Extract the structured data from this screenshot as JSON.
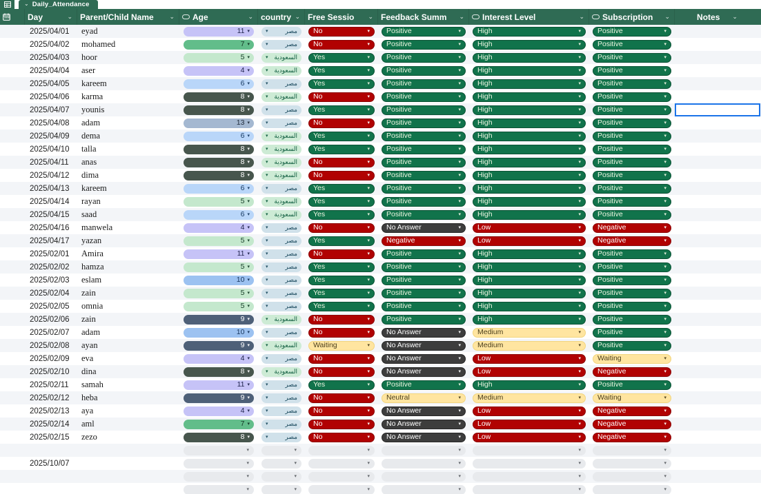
{
  "tab_bar": {
    "sheet_tab": "Daily_Attendance"
  },
  "header": {
    "columns": [
      {
        "key": "gutter",
        "label": "",
        "icon": "calendar-icon"
      },
      {
        "key": "day",
        "label": "Day"
      },
      {
        "key": "name",
        "label": "Parent/Child Name"
      },
      {
        "key": "age",
        "label": "Age",
        "type_icon": "dropdown-chip-icon"
      },
      {
        "key": "country",
        "label": "country"
      },
      {
        "key": "free",
        "label": "Free Sessio"
      },
      {
        "key": "feedback",
        "label": "Feedback Summ"
      },
      {
        "key": "interest",
        "label": "Interest Level",
        "type_icon": "dropdown-chip-icon"
      },
      {
        "key": "subscription",
        "label": "Subscription",
        "type_icon": "dropdown-chip-icon"
      },
      {
        "key": "notes",
        "label": "Notes"
      }
    ]
  },
  "rows": [
    {
      "day": "2025/04/01",
      "name": "eyad",
      "age": "11",
      "country": "مصر",
      "free": "No",
      "feedback": "Positive",
      "interest": "High",
      "subscription": "Positive",
      "notes": ""
    },
    {
      "day": "2025/04/02",
      "name": "mohamed",
      "age": "7",
      "country": "مصر",
      "free": "No",
      "feedback": "Positive",
      "interest": "High",
      "subscription": "Positive",
      "notes": ""
    },
    {
      "day": "2025/04/03",
      "name": "hoor",
      "age": "5",
      "country": "السعودية",
      "free": "Yes",
      "feedback": "Positive",
      "interest": "High",
      "subscription": "Positive",
      "notes": ""
    },
    {
      "day": "2025/04/04",
      "name": "aser",
      "age": "4",
      "country": "السعودية",
      "free": "Yes",
      "feedback": "Positive",
      "interest": "High",
      "subscription": "Positive",
      "notes": ""
    },
    {
      "day": "2025/04/05",
      "name": "kareem",
      "age": "6",
      "country": "مصر",
      "free": "Yes",
      "feedback": "Positive",
      "interest": "High",
      "subscription": "Positive",
      "notes": ""
    },
    {
      "day": "2025/04/06",
      "name": "karma",
      "age": "8",
      "country": "السعودية",
      "free": "No",
      "feedback": "Positive",
      "interest": "High",
      "subscription": "Positive",
      "notes": ""
    },
    {
      "day": "2025/04/07",
      "name": "younis",
      "age": "8",
      "country": "مصر",
      "free": "Yes",
      "feedback": "Positive",
      "interest": "High",
      "subscription": "Positive",
      "notes": ""
    },
    {
      "day": "2025/04/08",
      "name": "adam",
      "age": "13",
      "country": "مصر",
      "free": "No",
      "feedback": "Positive",
      "interest": "High",
      "subscription": "Positive",
      "notes": ""
    },
    {
      "day": "2025/04/09",
      "name": "dema",
      "age": "6",
      "country": "السعودية",
      "free": "Yes",
      "feedback": "Positive",
      "interest": "High",
      "subscription": "Positive",
      "notes": ""
    },
    {
      "day": "2025/04/10",
      "name": "talla",
      "age": "8",
      "country": "السعودية",
      "free": "Yes",
      "feedback": "Positive",
      "interest": "High",
      "subscription": "Positive",
      "notes": ""
    },
    {
      "day": "2025/04/11",
      "name": "anas",
      "age": "8",
      "country": "السعودية",
      "free": "No",
      "feedback": "Positive",
      "interest": "High",
      "subscription": "Positive",
      "notes": ""
    },
    {
      "day": "2025/04/12",
      "name": "dima",
      "age": "8",
      "country": "السعودية",
      "free": "No",
      "feedback": "Positive",
      "interest": "High",
      "subscription": "Positive",
      "notes": ""
    },
    {
      "day": "2025/04/13",
      "name": "kareem",
      "age": "6",
      "country": "مصر",
      "free": "Yes",
      "feedback": "Positive",
      "interest": "High",
      "subscription": "Positive",
      "notes": ""
    },
    {
      "day": "2025/04/14",
      "name": "rayan",
      "age": "5",
      "country": "السعودية",
      "free": "Yes",
      "feedback": "Positive",
      "interest": "High",
      "subscription": "Positive",
      "notes": ""
    },
    {
      "day": "2025/04/15",
      "name": "saad",
      "age": "6",
      "country": "السعودية",
      "free": "Yes",
      "feedback": "Positive",
      "interest": "High",
      "subscription": "Positive",
      "notes": ""
    },
    {
      "day": "2025/04/16",
      "name": "manwela",
      "age": "4",
      "country": "مصر",
      "free": "No",
      "feedback": "No Answer",
      "interest": "Low",
      "subscription": "Negative",
      "notes": ""
    },
    {
      "day": "2025/04/17",
      "name": "yazan",
      "age": "5",
      "country": "مصر",
      "free": "Yes",
      "feedback": "Negative",
      "interest": "Low",
      "subscription": "Negative",
      "notes": ""
    },
    {
      "day": "2025/02/01",
      "name": "Amira",
      "age": "11",
      "country": "مصر",
      "free": "No",
      "feedback": "Positive",
      "interest": "High",
      "subscription": "Positive",
      "notes": ""
    },
    {
      "day": "2025/02/02",
      "name": "hamza",
      "age": "5",
      "country": "مصر",
      "free": "Yes",
      "feedback": "Positive",
      "interest": "High",
      "subscription": "Positive",
      "notes": ""
    },
    {
      "day": "2025/02/03",
      "name": "eslam",
      "age": "10",
      "country": "مصر",
      "free": "Yes",
      "feedback": "Positive",
      "interest": "High",
      "subscription": "Positive",
      "notes": ""
    },
    {
      "day": "2025/02/04",
      "name": "zain",
      "age": "5",
      "country": "مصر",
      "free": "Yes",
      "feedback": "Positive",
      "interest": "High",
      "subscription": "Positive",
      "notes": ""
    },
    {
      "day": "2025/02/05",
      "name": "omnia",
      "age": "5",
      "country": "مصر",
      "free": "Yes",
      "feedback": "Positive",
      "interest": "High",
      "subscription": "Positive",
      "notes": ""
    },
    {
      "day": "2025/02/06",
      "name": "zain",
      "age": "9",
      "country": "السعودية",
      "free": "No",
      "feedback": "Positive",
      "interest": "High",
      "subscription": "Positive",
      "notes": ""
    },
    {
      "day": "2025/02/07",
      "name": "adam",
      "age": "10",
      "country": "مصر",
      "free": "No",
      "feedback": "No Answer",
      "interest": "Medium",
      "subscription": "Positive",
      "notes": ""
    },
    {
      "day": "2025/02/08",
      "name": "ayan",
      "age": "9",
      "country": "السعودية",
      "free": "Waiting",
      "feedback": "No Answer",
      "interest": "Medium",
      "subscription": "Positive",
      "notes": ""
    },
    {
      "day": "2025/02/09",
      "name": "eva",
      "age": "4",
      "country": "مصر",
      "free": "No",
      "feedback": "No Answer",
      "interest": "Low",
      "subscription": "Waiting",
      "notes": ""
    },
    {
      "day": "2025/02/10",
      "name": "dina",
      "age": "8",
      "country": "السعودية",
      "free": "No",
      "feedback": "No Answer",
      "interest": "Low",
      "subscription": "Negative",
      "notes": ""
    },
    {
      "day": "2025/02/11",
      "name": "samah",
      "age": "11",
      "country": "مصر",
      "free": "Yes",
      "feedback": "Positive",
      "interest": "High",
      "subscription": "Positive",
      "notes": ""
    },
    {
      "day": "2025/02/12",
      "name": "heba",
      "age": "9",
      "country": "مصر",
      "free": "No",
      "feedback": "Neutral",
      "interest": "Medium",
      "subscription": "Waiting",
      "notes": ""
    },
    {
      "day": "2025/02/13",
      "name": "aya",
      "age": "4",
      "country": "مصر",
      "free": "No",
      "feedback": "No Answer",
      "interest": "Low",
      "subscription": "Negative",
      "notes": ""
    },
    {
      "day": "2025/02/14",
      "name": "aml",
      "age": "7",
      "country": "مصر",
      "free": "No",
      "feedback": "No Answer",
      "interest": "Low",
      "subscription": "Negative",
      "notes": ""
    },
    {
      "day": "2025/02/15",
      "name": "zezo",
      "age": "8",
      "country": "مصر",
      "free": "No",
      "feedback": "No Answer",
      "interest": "Low",
      "subscription": "Negative",
      "notes": ""
    },
    {
      "day": "",
      "name": "",
      "age": "",
      "country": "",
      "free": "",
      "feedback": "",
      "interest": "",
      "subscription": "",
      "notes": "",
      "empty_chips": true
    },
    {
      "day": "2025/10/07",
      "name": "",
      "age": "",
      "country": "",
      "free": "",
      "feedback": "",
      "interest": "",
      "subscription": "",
      "notes": "",
      "empty_chips": true
    },
    {
      "day": "",
      "name": "",
      "age": "",
      "country": "",
      "free": "",
      "feedback": "",
      "interest": "",
      "subscription": "",
      "notes": "",
      "empty_chips": true
    },
    {
      "day": "",
      "name": "",
      "age": "",
      "country": "",
      "free": "",
      "feedback": "",
      "interest": "",
      "subscription": "",
      "notes": "",
      "empty_chips": true
    }
  ],
  "value_colors": {
    "Yes": "green",
    "No": "red",
    "Waiting": "yellow",
    "Positive": "green",
    "Negative": "red",
    "Neutral": "yellow",
    "No Answer": "darkgray",
    "High": "green",
    "Medium": "yellow",
    "Low": "red"
  },
  "age_colors": {
    "4": "lavender",
    "5": "lightgreen",
    "6": "lightblue",
    "7": "medgreen",
    "8": "darkolive",
    "9": "darkslate",
    "10": "medblue",
    "11": "lavender",
    "13": "bluegray"
  },
  "country_colors": {
    "مصر": "eg",
    "السعودية": "sa"
  },
  "palette": {
    "header_green": "#2F6B54",
    "chip_green": "#11734B",
    "chip_red": "#B10202",
    "chip_yellow": "#FFE5A0",
    "chip_darkgray": "#3D3D3D",
    "chip_empty": "#E8EAED",
    "age_lavender": "#C6C3F7",
    "age_lightgreen": "#C4E8CD",
    "age_medgreen": "#62BD8A",
    "age_lightblue": "#B9D6F9",
    "age_medblue": "#9CC2F1",
    "age_bluegray": "#A4B8D1",
    "age_darkolive": "#47564D",
    "age_darkslate": "#4E6078",
    "country_egypt_bg": "#D0E1EA",
    "country_saudi_bg": "#CDEBD5",
    "row_stripe": "#F3F5F8",
    "selection_blue": "#1A73E8"
  },
  "selection": {
    "row_index": 6,
    "day": "2025/04/07",
    "column": "Notes"
  }
}
